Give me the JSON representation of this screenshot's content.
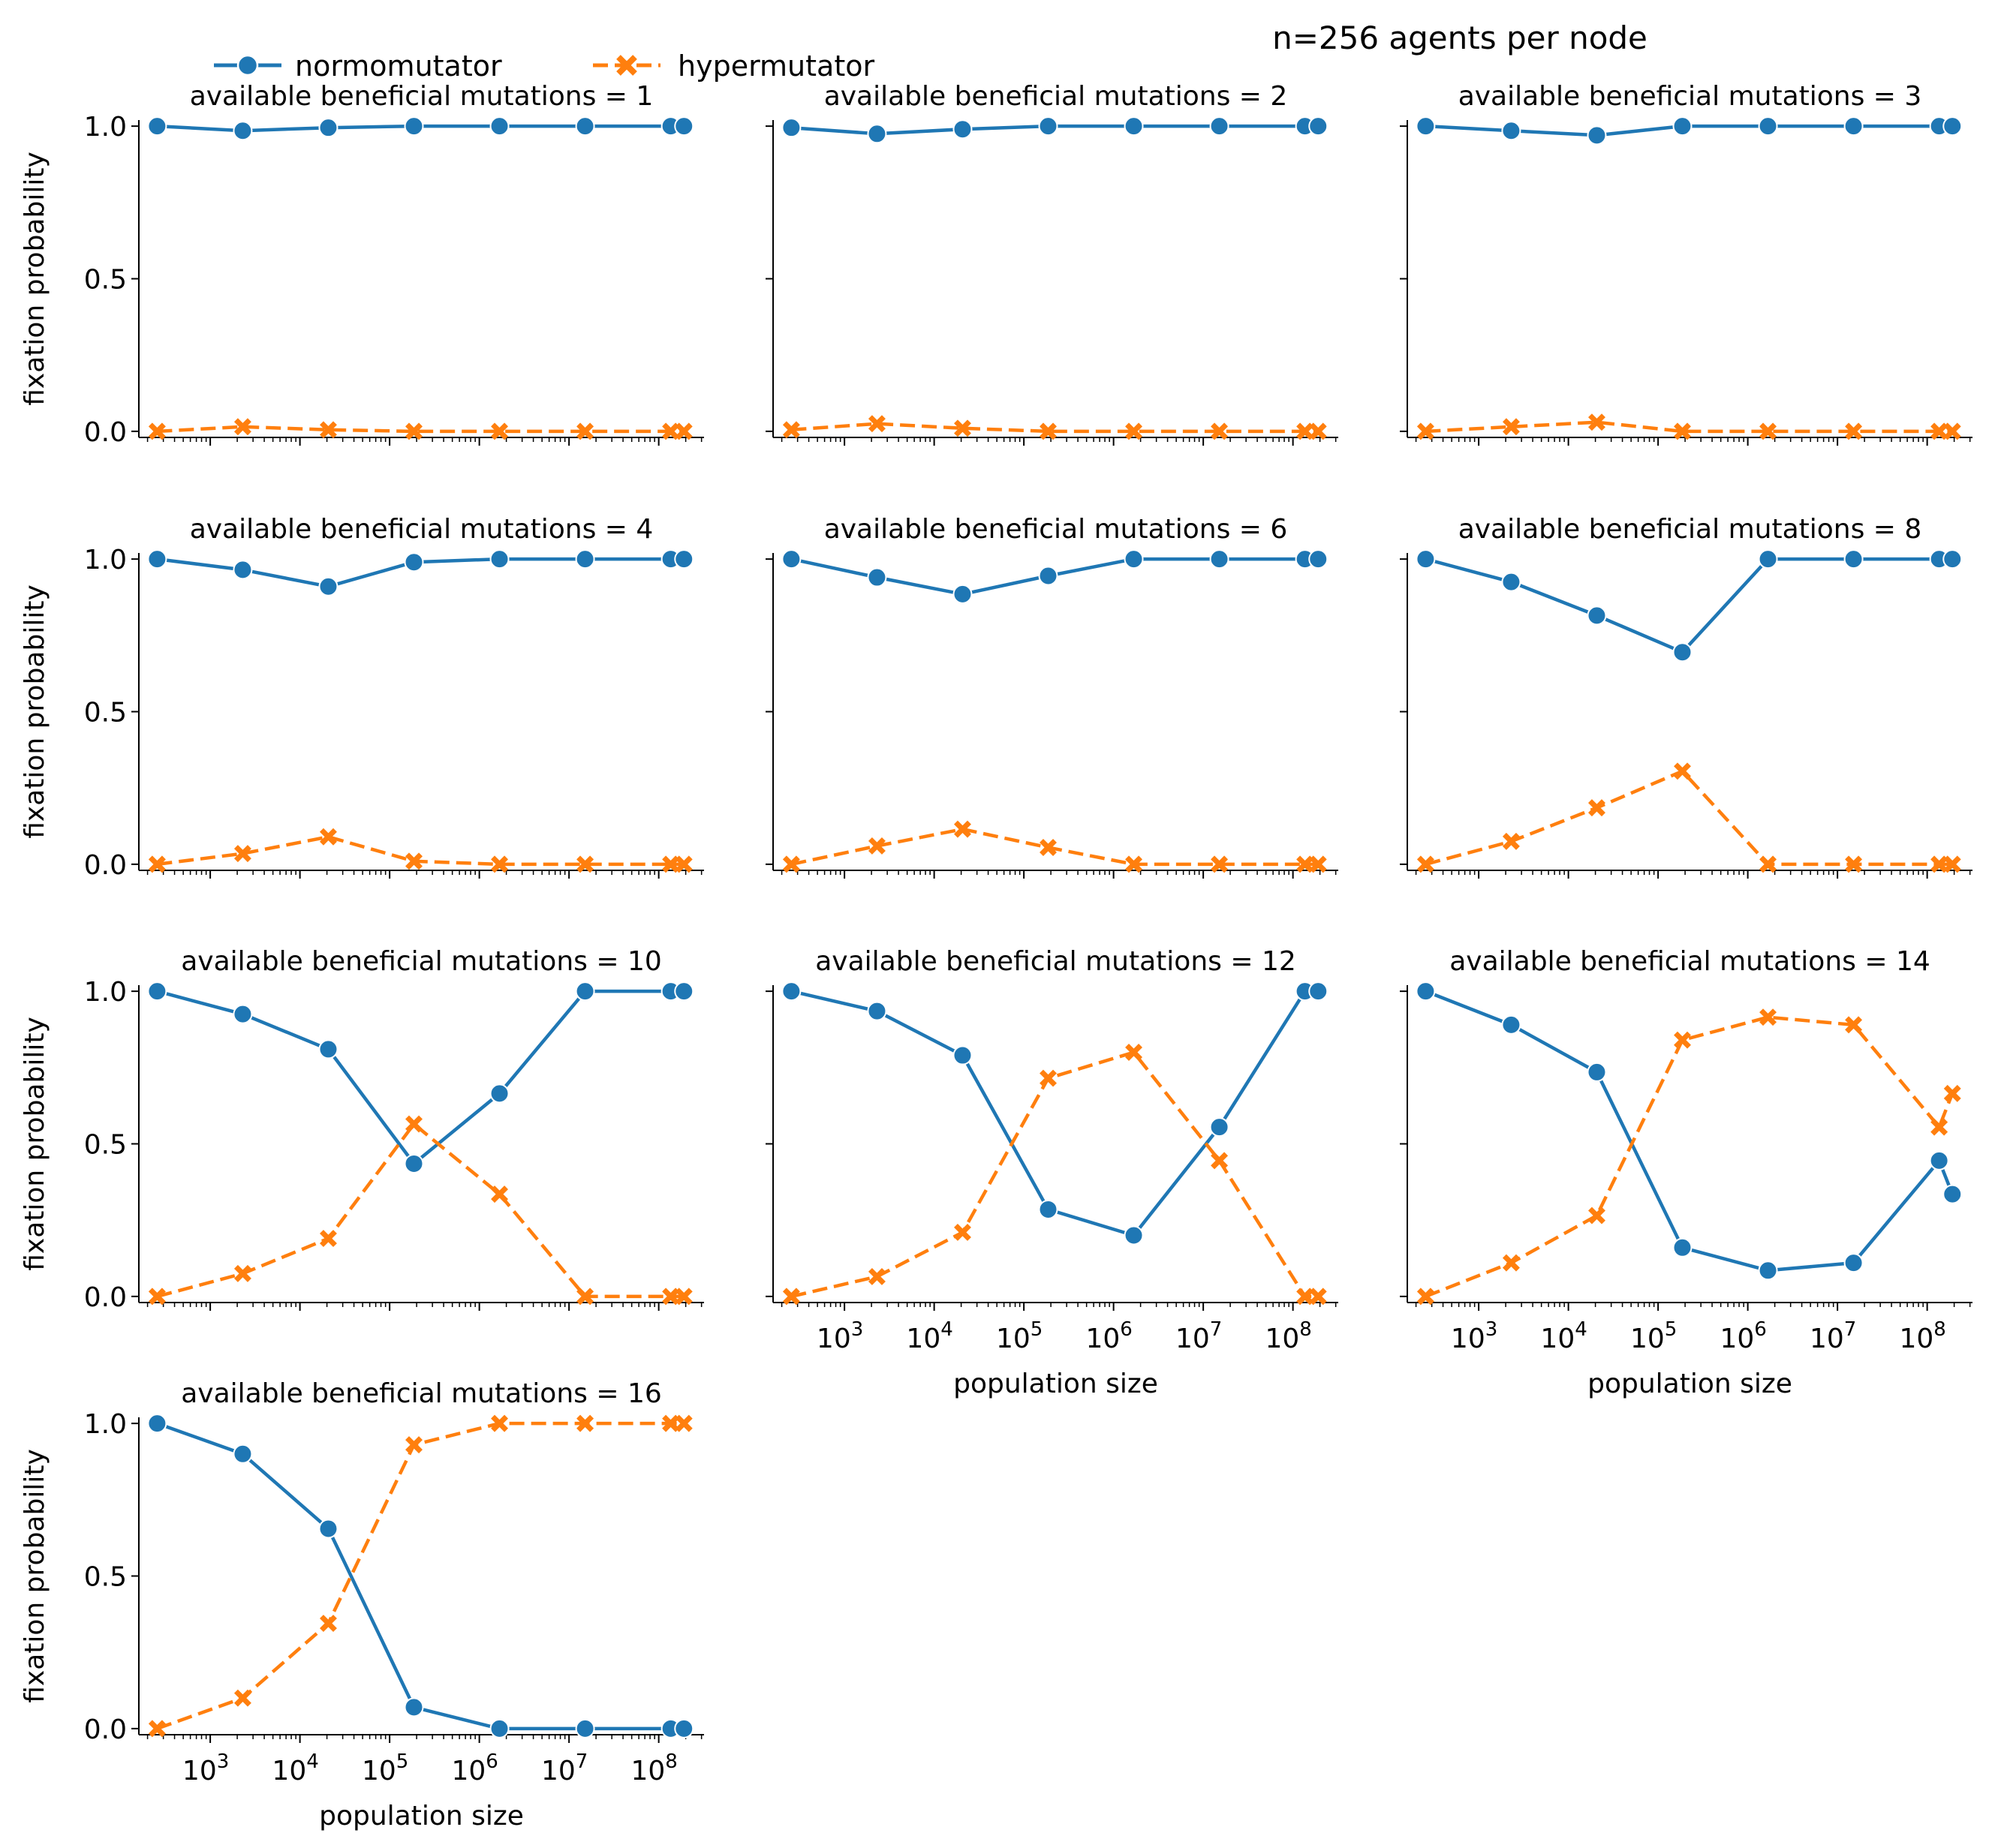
{
  "suptitle": "n=256 agents per node",
  "legend": {
    "placement": "top-left",
    "entries": [
      {
        "label": "normomutator",
        "color": "#1f77b4",
        "marker": "circle",
        "dash": "solid"
      },
      {
        "label": "hypermutator",
        "color": "#ff7f0e",
        "marker": "x",
        "dash": "dashed"
      }
    ]
  },
  "chart_data": {
    "type": "line",
    "xscale": "log",
    "x": [
      256,
      2304,
      20736,
      186624,
      1679616,
      15116544,
      136048896,
      191102976
    ],
    "xlim": [
      160,
      320000000
    ],
    "ylim": [
      -0.02,
      1.02
    ],
    "yticks": [
      0.0,
      0.5,
      1.0
    ],
    "ytick_labels": [
      "0.0",
      "0.5",
      "1.0"
    ],
    "xticks": [
      1000,
      10000,
      100000,
      1000000,
      10000000,
      100000000
    ],
    "xtick_labels": [
      "10",
      "10",
      "10",
      "10",
      "10",
      "10"
    ],
    "xtick_exponents": [
      "3",
      "4",
      "5",
      "6",
      "7",
      "8"
    ],
    "xlabel": "population size",
    "ylabel": "fixation probability",
    "panels": [
      {
        "title": "available beneficial mutations = 1",
        "normomutator": [
          1.0,
          0.985,
          0.995,
          1.0,
          1.0,
          1.0,
          1.0,
          1.0
        ],
        "hypermutator": [
          0.0,
          0.015,
          0.005,
          0.0,
          0.0,
          0.0,
          0.0,
          0.0
        ]
      },
      {
        "title": "available beneficial mutations = 2",
        "normomutator": [
          0.995,
          0.975,
          0.99,
          1.0,
          1.0,
          1.0,
          1.0,
          1.0
        ],
        "hypermutator": [
          0.005,
          0.025,
          0.01,
          0.0,
          0.0,
          0.0,
          0.0,
          0.0
        ]
      },
      {
        "title": "available beneficial mutations = 3",
        "normomutator": [
          1.0,
          0.985,
          0.97,
          1.0,
          1.0,
          1.0,
          1.0,
          1.0
        ],
        "hypermutator": [
          0.0,
          0.015,
          0.03,
          0.0,
          0.0,
          0.0,
          0.0,
          0.0
        ]
      },
      {
        "title": "available beneficial mutations = 4",
        "normomutator": [
          1.0,
          0.965,
          0.91,
          0.99,
          1.0,
          1.0,
          1.0,
          1.0
        ],
        "hypermutator": [
          0.0,
          0.035,
          0.09,
          0.01,
          0.0,
          0.0,
          0.0,
          0.0
        ]
      },
      {
        "title": "available beneficial mutations = 6",
        "normomutator": [
          1.0,
          0.94,
          0.885,
          0.945,
          1.0,
          1.0,
          1.0,
          1.0
        ],
        "hypermutator": [
          0.0,
          0.06,
          0.115,
          0.055,
          0.0,
          0.0,
          0.0,
          0.0
        ]
      },
      {
        "title": "available beneficial mutations = 8",
        "normomutator": [
          1.0,
          0.925,
          0.815,
          0.695,
          1.0,
          1.0,
          1.0,
          1.0
        ],
        "hypermutator": [
          0.0,
          0.075,
          0.185,
          0.305,
          0.0,
          0.0,
          0.0,
          0.0
        ]
      },
      {
        "title": "available beneficial mutations = 10",
        "normomutator": [
          1.0,
          0.925,
          0.81,
          0.435,
          0.665,
          1.0,
          1.0,
          1.0
        ],
        "hypermutator": [
          0.0,
          0.075,
          0.19,
          0.565,
          0.335,
          0.0,
          0.0,
          0.0
        ]
      },
      {
        "title": "available beneficial mutations = 12",
        "normomutator": [
          1.0,
          0.935,
          0.79,
          0.285,
          0.2,
          0.555,
          1.0,
          1.0
        ],
        "hypermutator": [
          0.0,
          0.065,
          0.21,
          0.715,
          0.8,
          0.445,
          0.0,
          0.0
        ]
      },
      {
        "title": "available beneficial mutations = 14",
        "normomutator": [
          1.0,
          0.89,
          0.735,
          0.16,
          0.085,
          0.11,
          0.445,
          0.335
        ],
        "hypermutator": [
          0.0,
          0.11,
          0.265,
          0.84,
          0.915,
          0.89,
          0.555,
          0.665
        ]
      },
      {
        "title": "available beneficial mutations = 16",
        "normomutator": [
          1.0,
          0.9,
          0.655,
          0.07,
          0.0,
          0.0,
          0.0,
          0.0
        ],
        "hypermutator": [
          0.0,
          0.1,
          0.345,
          0.93,
          1.0,
          1.0,
          1.0,
          1.0
        ]
      }
    ]
  }
}
